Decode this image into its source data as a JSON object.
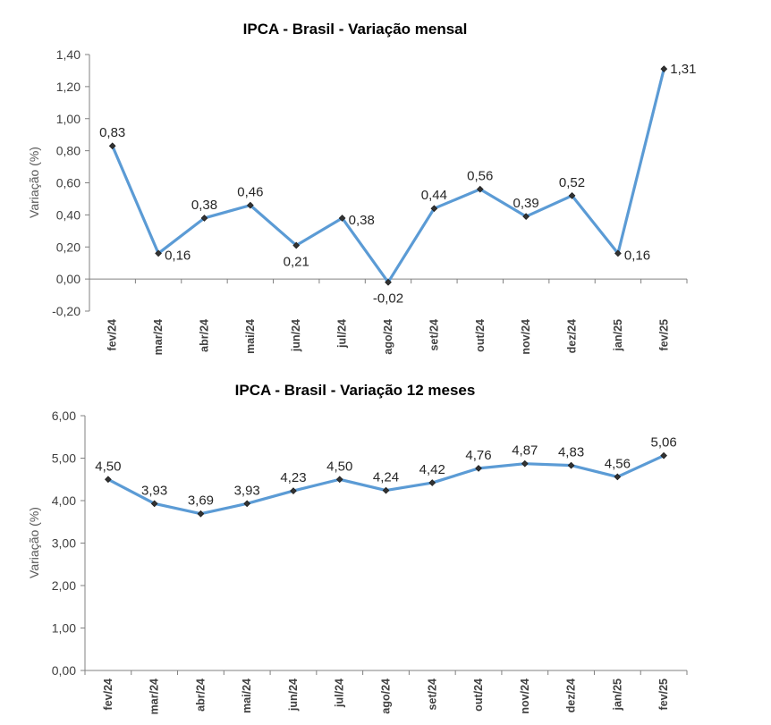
{
  "chart_data": [
    {
      "type": "line",
      "title": "IPCA - Brasil - Variação mensal",
      "ylabel": "Variação (%)",
      "xlabel": "",
      "categories": [
        "fev/24",
        "mar/24",
        "abr/24",
        "mai/24",
        "jun/24",
        "jul/24",
        "ago/24",
        "set/24",
        "out/24",
        "nov/24",
        "dez/24",
        "jan/25",
        "fev/25"
      ],
      "values": [
        0.83,
        0.16,
        0.38,
        0.46,
        0.21,
        0.38,
        -0.02,
        0.44,
        0.56,
        0.39,
        0.52,
        0.16,
        1.31
      ],
      "data_labels": [
        "0,83",
        "0,16",
        "0,38",
        "0,46",
        "0,21",
        "0,38",
        "-0,02",
        "0,44",
        "0,56",
        "0,39",
        "0,52",
        "0,16",
        "1,31"
      ],
      "ylim": [
        -0.2,
        1.4
      ],
      "yticks": [
        -0.2,
        0.0,
        0.2,
        0.4,
        0.6,
        0.8,
        1.0,
        1.2,
        1.4
      ],
      "ytick_labels": [
        "-0,20",
        "0,00",
        "0,20",
        "0,40",
        "0,60",
        "0,80",
        "1,00",
        "1,20",
        "1,40"
      ],
      "grid": false,
      "line_color": "#5b9bd5",
      "marker_color": "#333333"
    },
    {
      "type": "line",
      "title": "IPCA - Brasil - Variação 12 meses",
      "ylabel": "Variação (%)",
      "xlabel": "",
      "categories": [
        "fev/24",
        "mar/24",
        "abr/24",
        "mai/24",
        "jun/24",
        "jul/24",
        "ago/24",
        "set/24",
        "out/24",
        "nov/24",
        "dez/24",
        "jan/25",
        "fev/25"
      ],
      "values": [
        4.5,
        3.93,
        3.69,
        3.93,
        4.23,
        4.5,
        4.24,
        4.42,
        4.76,
        4.87,
        4.83,
        4.56,
        5.06
      ],
      "data_labels": [
        "4,50",
        "3,93",
        "3,69",
        "3,93",
        "4,23",
        "4,50",
        "4,24",
        "4,42",
        "4,76",
        "4,87",
        "4,83",
        "4,56",
        "5,06"
      ],
      "ylim": [
        0,
        6
      ],
      "yticks": [
        0,
        1,
        2,
        3,
        4,
        5,
        6
      ],
      "ytick_labels": [
        "0,00",
        "1,00",
        "2,00",
        "3,00",
        "4,00",
        "5,00",
        "6,00"
      ],
      "grid": false,
      "line_color": "#5b9bd5",
      "marker_color": "#333333"
    }
  ]
}
